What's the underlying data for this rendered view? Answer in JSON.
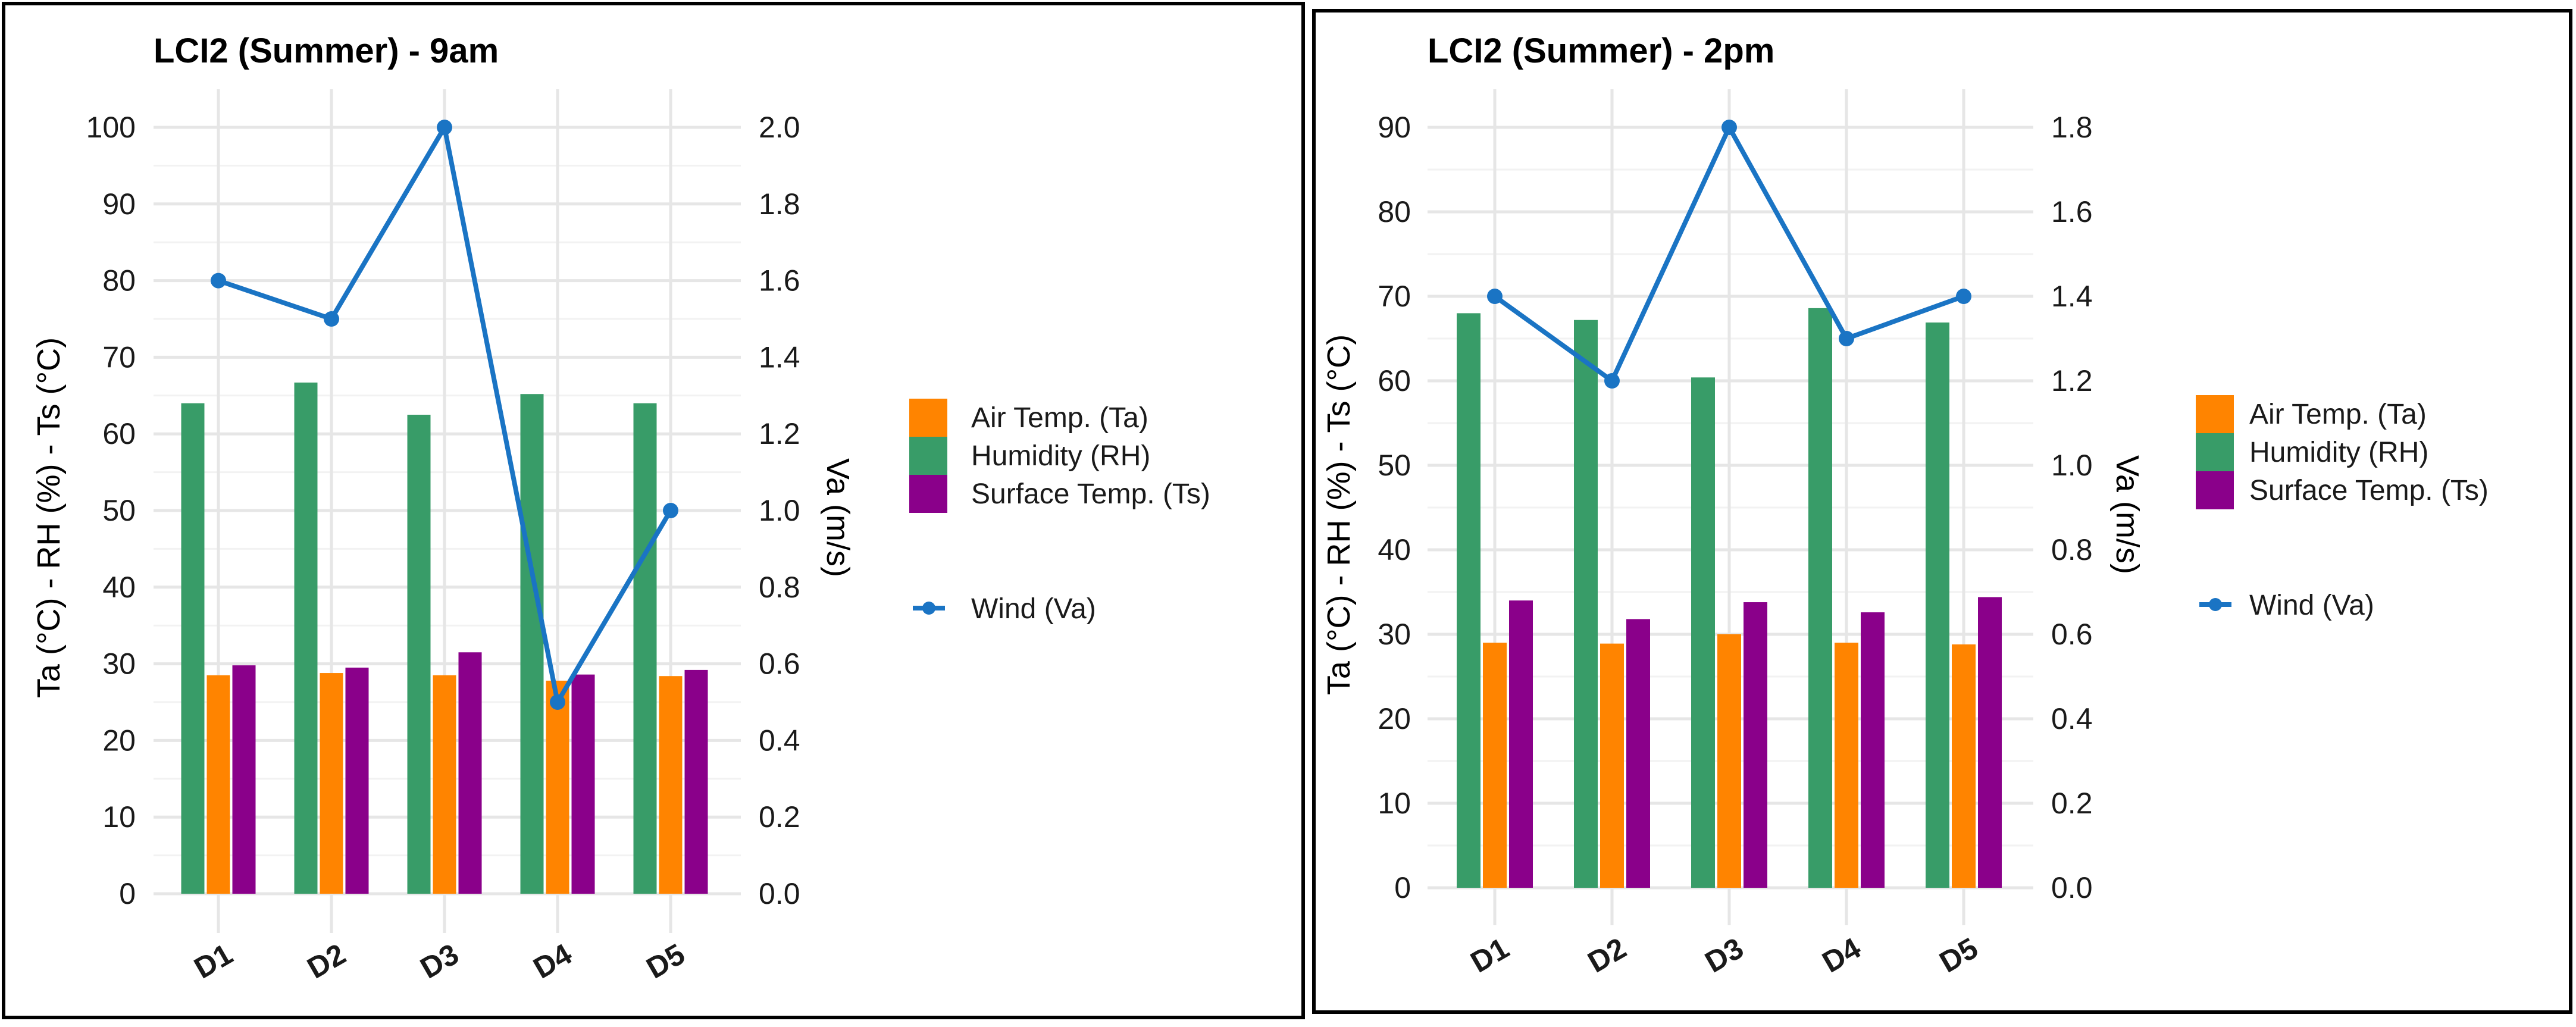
{
  "colors": {
    "air_temp": "#FF8400",
    "humidity": "#389C68",
    "surface_temp": "#8A008A",
    "wind": "#1A74C4",
    "frame": "#000000"
  },
  "chart_data": [
    {
      "type": "bar",
      "title": "LCI2 (Summer) - 9am",
      "categories": [
        "D1",
        "D2",
        "D3",
        "D4",
        "D5"
      ],
      "ylabel": "Ta (°C) - RH (%) - Ts (°C)",
      "y2label": "Va (m/s)",
      "ylim": [
        0,
        100
      ],
      "yticks": [
        0,
        10,
        20,
        30,
        40,
        50,
        60,
        70,
        80,
        90,
        100
      ],
      "y2lim": [
        0,
        2.0
      ],
      "y2ticks": [
        "0.0",
        "0.2",
        "0.4",
        "0.6",
        "0.8",
        "1.0",
        "1.2",
        "1.4",
        "1.6",
        "1.8",
        "2.0"
      ],
      "series": [
        {
          "name": "Humidity (RH)",
          "key": "humidity",
          "values": [
            64,
            66.7,
            62.5,
            65.2,
            64
          ]
        },
        {
          "name": "Air Temp. (Ta)",
          "key": "air_temp",
          "values": [
            28.5,
            28.8,
            28.5,
            27.8,
            28.4
          ]
        },
        {
          "name": "Surface Temp. (Ts)",
          "key": "surface_temp",
          "values": [
            29.8,
            29.5,
            31.5,
            28.6,
            29.2
          ]
        }
      ],
      "line": {
        "name": "Wind (Va)",
        "key": "wind",
        "values": [
          1.6,
          1.5,
          2.0,
          0.5,
          1.0
        ]
      },
      "legend": [
        "Air Temp. (Ta)",
        "Humidity (RH)",
        "Surface Temp. (Ts)"
      ],
      "legend_line": "Wind (Va)",
      "grid": true,
      "legend_position": "right"
    },
    {
      "type": "bar",
      "title": "LCI2 (Summer) - 2pm",
      "categories": [
        "D1",
        "D2",
        "D3",
        "D4",
        "D5"
      ],
      "ylabel": "Ta (°C) - RH (%) - Ts (°C)",
      "y2label": "Va (m/s)",
      "ylim": [
        0,
        90
      ],
      "yticks": [
        0,
        10,
        20,
        30,
        40,
        50,
        60,
        70,
        80,
        90
      ],
      "y2lim": [
        0,
        1.8
      ],
      "y2ticks": [
        "0.0",
        "0.2",
        "0.4",
        "0.6",
        "0.8",
        "1.0",
        "1.2",
        "1.4",
        "1.6",
        "1.8"
      ],
      "series": [
        {
          "name": "Humidity (RH)",
          "key": "humidity",
          "values": [
            68,
            67.2,
            60.4,
            68.6,
            66.9
          ]
        },
        {
          "name": "Air Temp. (Ta)",
          "key": "air_temp",
          "values": [
            29,
            28.9,
            30,
            29,
            28.8
          ]
        },
        {
          "name": "Surface Temp. (Ts)",
          "key": "surface_temp",
          "values": [
            34,
            31.8,
            33.8,
            32.6,
            34.4
          ]
        }
      ],
      "line": {
        "name": "Wind (Va)",
        "key": "wind",
        "values": [
          1.4,
          1.2,
          1.8,
          1.3,
          1.4
        ]
      },
      "legend": [
        "Air Temp. (Ta)",
        "Humidity (RH)",
        "Surface Temp. (Ts)"
      ],
      "legend_line": "Wind (Va)",
      "grid": true,
      "legend_position": "right"
    }
  ]
}
